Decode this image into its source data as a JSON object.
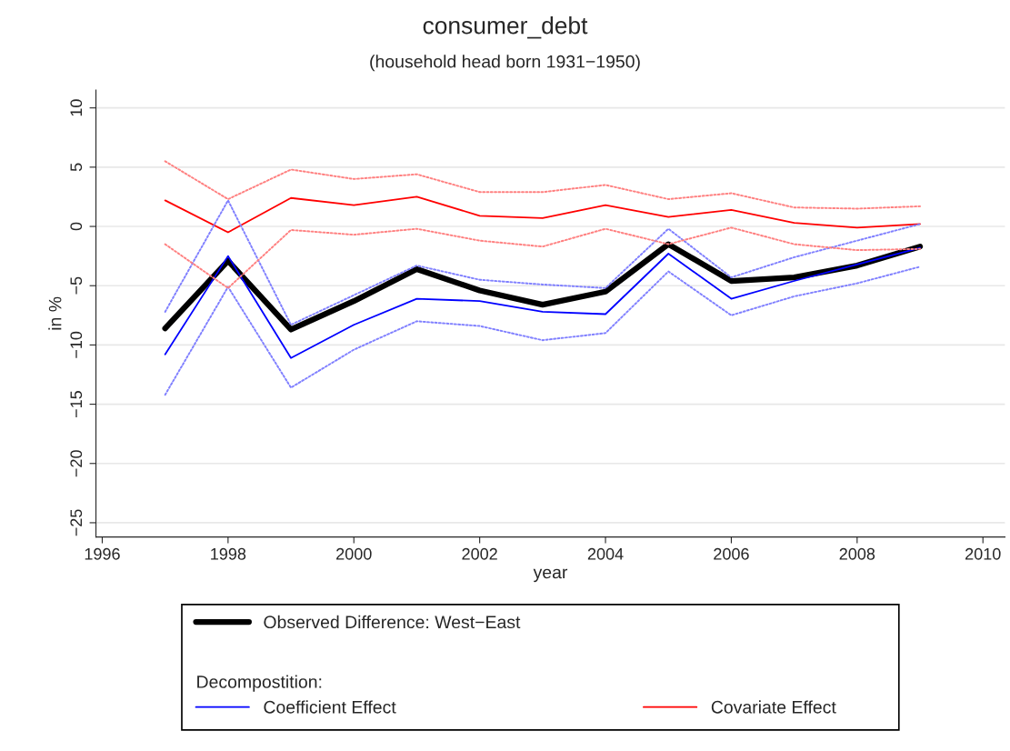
{
  "chart_data": {
    "type": "line",
    "title": "consumer_debt",
    "subtitle": "(household head born 1931−1950)",
    "xlabel": "year",
    "ylabel": "in %",
    "x": [
      1997,
      1998,
      1999,
      2000,
      2001,
      2002,
      2003,
      2004,
      2005,
      2006,
      2007,
      2008,
      2009
    ],
    "series": [
      {
        "name": "Observed Difference: West−East",
        "color": "#000000",
        "values": [
          -8.6,
          -2.9,
          -8.7,
          -6.3,
          -3.6,
          -5.4,
          -6.6,
          -5.5,
          -1.5,
          -4.6,
          -4.3,
          -3.3,
          -1.7
        ]
      },
      {
        "name": "Coefficient Effect",
        "color": "#0000ff",
        "values": [
          -10.8,
          -2.5,
          -11.1,
          -8.3,
          -6.1,
          -6.3,
          -7.2,
          -7.4,
          -2.3,
          -6.1,
          -4.6,
          -3.2,
          -1.8
        ]
      },
      {
        "name": "Covariate Effect",
        "color": "#ff0000",
        "values": [
          2.2,
          -0.5,
          2.4,
          1.8,
          2.5,
          0.9,
          0.7,
          1.8,
          0.8,
          1.4,
          0.3,
          -0.1,
          0.2
        ]
      },
      {
        "color": "#8080ff",
        "line_style": "dotted",
        "values": [
          -7.2,
          2.2,
          -8.3,
          -5.8,
          -3.3,
          -4.5,
          -4.9,
          -5.2,
          -0.2,
          -4.3,
          -2.6,
          -1.2,
          0.2
        ]
      },
      {
        "color": "#8080ff",
        "line_style": "dotted",
        "values": [
          -14.2,
          -5.1,
          -13.6,
          -10.4,
          -8.0,
          -8.4,
          -9.6,
          -9.0,
          -3.8,
          -7.5,
          -5.9,
          -4.8,
          -3.4
        ]
      },
      {
        "color": "#ff8080",
        "line_style": "dotted",
        "values": [
          5.5,
          2.3,
          4.8,
          4.0,
          4.4,
          2.9,
          2.9,
          3.5,
          2.3,
          2.8,
          1.6,
          1.5,
          1.7
        ]
      },
      {
        "color": "#ff8080",
        "line_style": "dotted",
        "values": [
          -1.5,
          -5.2,
          -0.3,
          -0.7,
          -0.2,
          -1.2,
          -1.7,
          -0.2,
          -1.5,
          -0.1,
          -1.5,
          -2.0,
          -1.9
        ]
      }
    ],
    "annotations": [
      "Decompostition:"
    ],
    "xlim": [
      1995.9,
      2010.35
    ],
    "xticks": [
      1996,
      1998,
      2000,
      2002,
      2004,
      2006,
      2008,
      2010
    ],
    "ylim": [
      -26.2,
      11.5
    ],
    "yticks": [
      -25,
      -20,
      -15,
      -10,
      -5,
      0,
      5,
      10
    ],
    "grid": "y",
    "legend": "bottom",
    "marker": "none",
    "line_style": "solid"
  }
}
